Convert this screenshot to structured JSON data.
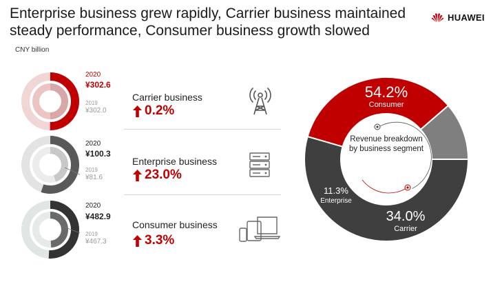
{
  "title": {
    "line1": "Enterprise business grew rapidly, Carrier business maintained",
    "line2": "steady performance, Consumer business growth slowed"
  },
  "brand": {
    "name": "HUAWEI",
    "color": "#c7000b"
  },
  "unit_label": "CNY billion",
  "colors": {
    "carrier": "#c00000",
    "enterprise": "#7f7f7f",
    "consumer": "#3f3f3f",
    "growth": "#c00000"
  },
  "segments": [
    {
      "id": "carrier",
      "name": "Carrier business",
      "year_current": "2020",
      "value_current": "¥302.6",
      "year_prior": "2019",
      "value_prior": "¥302.0",
      "growth": "0.2%",
      "icon": "antenna-icon"
    },
    {
      "id": "enterprise",
      "name": "Enterprise business",
      "year_current": "2020",
      "value_current": "¥100.3",
      "year_prior": "2019",
      "value_prior": "¥81.6",
      "growth": "23.0%",
      "icon": "server-icon"
    },
    {
      "id": "consumer",
      "name": "Consumer business",
      "year_current": "2020",
      "value_current": "¥482.9",
      "year_prior": "2019",
      "value_prior": "¥467.3",
      "growth": "3.3%",
      "icon": "devices-icon"
    }
  ],
  "chart_data": [
    {
      "type": "pie",
      "title": "Revenue breakdown by business segment",
      "categories": [
        "Consumer",
        "Carrier",
        "Enterprise"
      ],
      "values": [
        54.2,
        34.0,
        11.3
      ],
      "value_labels": [
        "54.2%",
        "34.0%",
        "11.3%"
      ],
      "colors": [
        "#3f3f3f",
        "#c00000",
        "#7f7f7f"
      ],
      "start": "3 o'clock, Consumer clockwise to 12 o'clock"
    },
    {
      "type": "bar",
      "orientation": "radial",
      "unit": "CNY billion",
      "categories": [
        "Carrier business",
        "Enterprise business",
        "Consumer business"
      ],
      "series": [
        {
          "name": "2020",
          "values": [
            302.6,
            100.3,
            482.9
          ]
        },
        {
          "name": "2019",
          "values": [
            302.0,
            81.6,
            467.3
          ]
        }
      ]
    }
  ]
}
